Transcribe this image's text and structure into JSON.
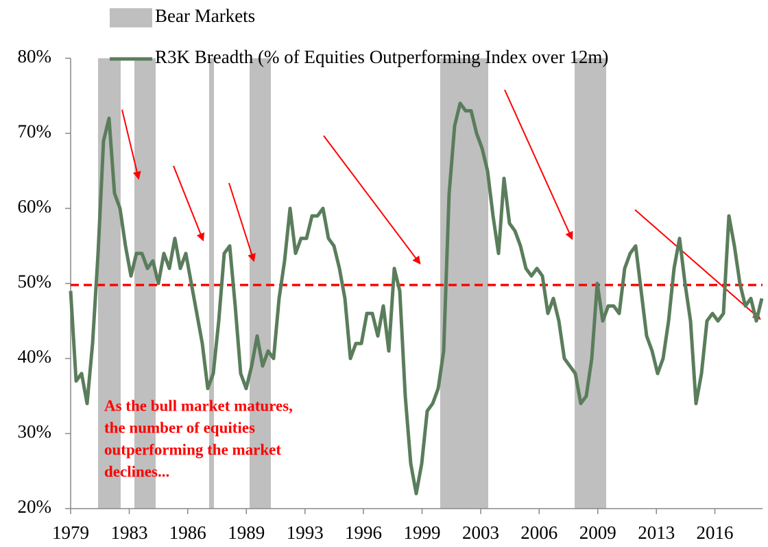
{
  "chart_data": {
    "type": "line",
    "x": [
      1979,
      1979.32,
      1979.64,
      1979.96,
      1980.28,
      1980.6,
      1980.92,
      1981.24,
      1981.56,
      1981.88,
      1982.2,
      1982.52,
      1982.84,
      1983.16,
      1983.48,
      1983.8,
      1984.12,
      1984.44,
      1984.76,
      1985.08,
      1985.4,
      1985.72,
      1986.04,
      1986.36,
      1986.68,
      1987,
      1987.32,
      1987.64,
      1987.96,
      1988.28,
      1988.6,
      1988.92,
      1989.24,
      1989.56,
      1989.88,
      1990.2,
      1990.52,
      1990.84,
      1991.16,
      1991.48,
      1991.8,
      1992.12,
      1992.44,
      1992.76,
      1993.08,
      1993.4,
      1993.72,
      1994.04,
      1994.36,
      1994.68,
      1995,
      1995.32,
      1995.64,
      1995.96,
      1996.28,
      1996.6,
      1996.92,
      1997.24,
      1997.56,
      1997.88,
      1998.2,
      1998.52,
      1998.84,
      1999.16,
      1999.48,
      1999.8,
      2000.12,
      2000.44,
      2000.76,
      2001.08,
      2001.4,
      2001.72,
      2002.04,
      2002.36,
      2002.68,
      2003,
      2003.32,
      2003.64,
      2003.96,
      2004.28,
      2004.6,
      2004.92,
      2005.24,
      2005.56,
      2005.88,
      2006.2,
      2006.52,
      2006.84,
      2007.16,
      2007.48,
      2007.8,
      2008.12,
      2008.44,
      2008.76,
      2009.08,
      2009.4,
      2009.72,
      2010.04,
      2010.36,
      2010.68,
      2011,
      2011.32,
      2011.64,
      2011.96,
      2012.28,
      2012.6,
      2012.92,
      2013.24,
      2013.56,
      2013.88,
      2014.2,
      2014.52,
      2014.84,
      2015.16,
      2015.48,
      2015.8,
      2016.12,
      2016.44,
      2016.76,
      2017.08,
      2017.4,
      2017.72,
      2018.04,
      2018.36,
      2018.68,
      2019,
      2019.32
    ],
    "series": [
      {
        "name": "R3K Breadth (% of Equities Outperforming Index over 12m)",
        "color": "#5a7d5c",
        "values": [
          49,
          37,
          38,
          34,
          42,
          54,
          69,
          72,
          62,
          60,
          55,
          51,
          54,
          54,
          52,
          53,
          50,
          54,
          52,
          56,
          52,
          54,
          50,
          46,
          42,
          36,
          38,
          45,
          54,
          55,
          47,
          38,
          36,
          39,
          43,
          39,
          41,
          40,
          48,
          53,
          60,
          54,
          56,
          56,
          59,
          59,
          60,
          56,
          55,
          52,
          48,
          40,
          42,
          42,
          46,
          46,
          43,
          47,
          41,
          52,
          49,
          35,
          26,
          22,
          26,
          33,
          34,
          36,
          41,
          62,
          71,
          74,
          73,
          73,
          70,
          68,
          65,
          59,
          54,
          64,
          58,
          57,
          55,
          52,
          51,
          52,
          51,
          46,
          48,
          45,
          40,
          39,
          38,
          34,
          35,
          40,
          50,
          45,
          47,
          47,
          46,
          52,
          54,
          55,
          49,
          43,
          41,
          38,
          40,
          45,
          52,
          56,
          50,
          45,
          34,
          38,
          45,
          46,
          45,
          46,
          59,
          55,
          50,
          47,
          48,
          45,
          48
        ]
      }
    ],
    "bear_markets": {
      "name": "Bear Markets",
      "color": "#bfbfbf",
      "ranges": [
        [
          1980.6,
          1981.92
        ],
        [
          1982.72,
          1983.96
        ],
        [
          1987.08,
          1987.36
        ],
        [
          1989.44,
          1990.68
        ],
        [
          2000.56,
          2003.36
        ],
        [
          2008.4,
          2010.24
        ]
      ]
    },
    "reference_line": {
      "value": 49.8,
      "color": "#ff0000"
    },
    "annotation": [
      "As the bull market matures,",
      "the number of equities",
      "outperforming the market",
      "declines..."
    ],
    "annotation_color": "#ff0000",
    "xlim": [
      1979,
      2019.36
    ],
    "xticks": [
      {
        "value": 1979,
        "label": "1979"
      },
      {
        "value": 1982.42,
        "label": "1983"
      },
      {
        "value": 1985.83,
        "label": "1986"
      },
      {
        "value": 1989.25,
        "label": "1989"
      },
      {
        "value": 1992.67,
        "label": "1993"
      },
      {
        "value": 1996.08,
        "label": "1996"
      },
      {
        "value": 1999.5,
        "label": "1999"
      },
      {
        "value": 2002.92,
        "label": "2003"
      },
      {
        "value": 2006.33,
        "label": "2006"
      },
      {
        "value": 2009.75,
        "label": "2009"
      },
      {
        "value": 2013.17,
        "label": "2013"
      },
      {
        "value": 2016.58,
        "label": "2016"
      }
    ],
    "ylim": [
      20,
      80
    ],
    "yticks": [
      {
        "value": 20,
        "label": "20%"
      },
      {
        "value": 30,
        "label": "30%"
      },
      {
        "value": 40,
        "label": "40%"
      },
      {
        "value": 50,
        "label": "50%"
      },
      {
        "value": 60,
        "label": "60%"
      },
      {
        "value": 70,
        "label": "70%"
      },
      {
        "value": 80,
        "label": "80%"
      }
    ],
    "grid": false,
    "legend": "top"
  }
}
